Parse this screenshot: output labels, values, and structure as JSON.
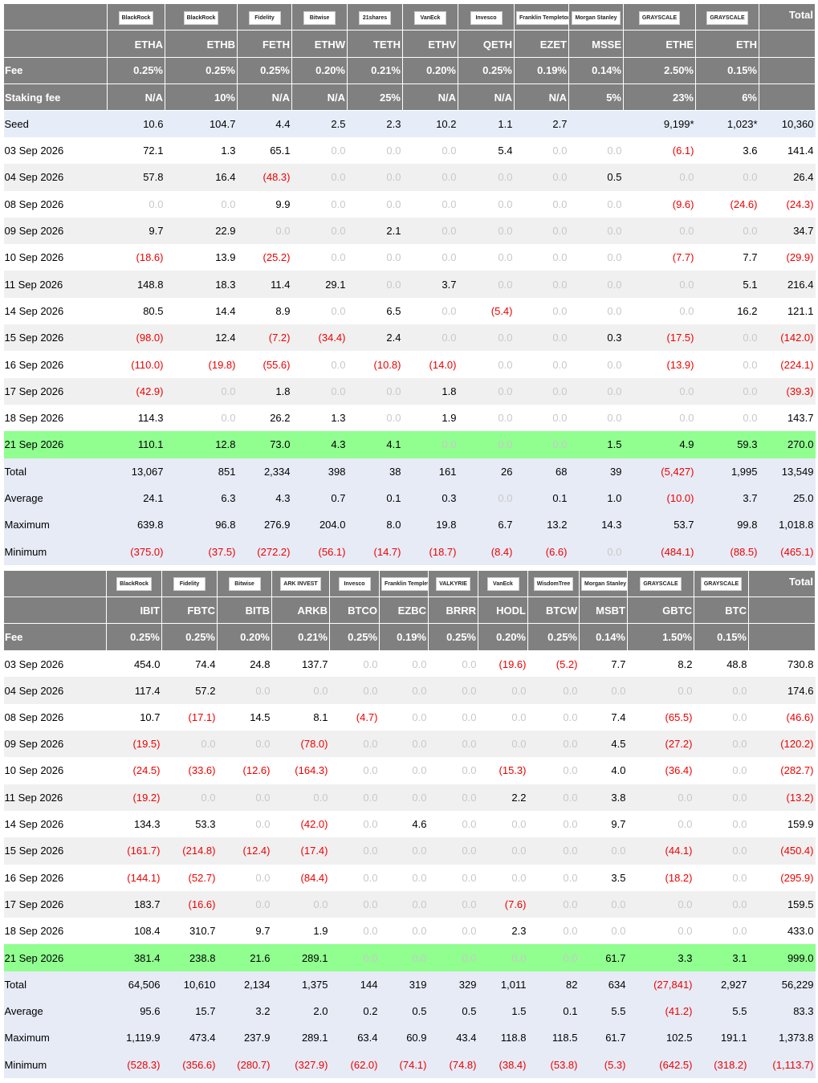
{
  "tables": [
    {
      "issuers": [
        "BlackRock",
        "BlackRock",
        "Fidelity",
        "Bitwise",
        "21shares",
        "VanEck",
        "Invesco",
        "Franklin Templeton",
        "Morgan Stanley",
        "GRAYSCALE",
        "GRAYSCALE"
      ],
      "total_header": "Total",
      "tickers": [
        "ETHA",
        "ETHB",
        "FETH",
        "ETHW",
        "TETH",
        "ETHV",
        "QETH",
        "EZET",
        "MSSE",
        "ETHE",
        "ETH"
      ],
      "fee": {
        "label": "Fee",
        "values": [
          "0.25%",
          "0.25%",
          "0.25%",
          "0.20%",
          "0.21%",
          "0.20%",
          "0.25%",
          "0.19%",
          "0.14%",
          "2.50%",
          "0.15%"
        ]
      },
      "staking_fee": {
        "label": "Staking fee",
        "values": [
          "N/A",
          "10%",
          "N/A",
          "N/A",
          "25%",
          "N/A",
          "N/A",
          "N/A",
          "5%",
          "23%",
          "6%"
        ]
      },
      "seed": {
        "label": "Seed",
        "cells": [
          "10.6",
          "104.7",
          "4.4",
          "2.5",
          "2.3",
          "10.2",
          "1.1",
          "2.7",
          null,
          "9,199*",
          "1,023*",
          "10,360"
        ]
      },
      "rows": [
        {
          "label": "03 Sep 2026",
          "cells": [
            "72.1",
            "1.3",
            "65.1",
            "0.0",
            "0.0",
            "0.0",
            "5.4",
            "0.0",
            "0.0",
            "(6.1)",
            "3.6",
            "141.4"
          ]
        },
        {
          "label": "04 Sep 2026",
          "cells": [
            "57.8",
            "16.4",
            "(48.3)",
            "0.0",
            "0.0",
            "0.0",
            "0.0",
            "0.0",
            "0.5",
            "0.0",
            "0.0",
            "26.4"
          ]
        },
        {
          "label": "08 Sep 2026",
          "cells": [
            "0.0",
            "0.0",
            "9.9",
            "0.0",
            "0.0",
            "0.0",
            "0.0",
            "0.0",
            "0.0",
            "(9.6)",
            "(24.6)",
            "(24.3)"
          ]
        },
        {
          "label": "09 Sep 2026",
          "cells": [
            "9.7",
            "22.9",
            "0.0",
            "0.0",
            "2.1",
            "0.0",
            "0.0",
            "0.0",
            "0.0",
            "0.0",
            "0.0",
            "34.7"
          ]
        },
        {
          "label": "10 Sep 2026",
          "cells": [
            "(18.6)",
            "13.9",
            "(25.2)",
            "0.0",
            "0.0",
            "0.0",
            "0.0",
            "0.0",
            "0.0",
            "(7.7)",
            "7.7",
            "(29.9)"
          ]
        },
        {
          "label": "11 Sep 2026",
          "cells": [
            "148.8",
            "18.3",
            "11.4",
            "29.1",
            "0.0",
            "3.7",
            "0.0",
            "0.0",
            "0.0",
            "0.0",
            "5.1",
            "216.4"
          ]
        },
        {
          "label": "14 Sep 2026",
          "cells": [
            "80.5",
            "14.4",
            "8.9",
            "0.0",
            "6.5",
            "0.0",
            "(5.4)",
            "0.0",
            "0.0",
            "0.0",
            "16.2",
            "121.1"
          ]
        },
        {
          "label": "15 Sep 2026",
          "cells": [
            "(98.0)",
            "12.4",
            "(7.2)",
            "(34.4)",
            "2.4",
            "0.0",
            "0.0",
            "0.0",
            "0.3",
            "(17.5)",
            "0.0",
            "(142.0)"
          ]
        },
        {
          "label": "16 Sep 2026",
          "cells": [
            "(110.0)",
            "(19.8)",
            "(55.6)",
            "0.0",
            "(10.8)",
            "(14.0)",
            "0.0",
            "0.0",
            "0.0",
            "(13.9)",
            "0.0",
            "(224.1)"
          ]
        },
        {
          "label": "17 Sep 2026",
          "cells": [
            "(42.9)",
            "0.0",
            "1.8",
            "0.0",
            "0.0",
            "1.8",
            "0.0",
            "0.0",
            "0.0",
            "0.0",
            "0.0",
            "(39.3)"
          ]
        },
        {
          "label": "18 Sep 2026",
          "cells": [
            "114.3",
            "0.0",
            "26.2",
            "1.3",
            "0.0",
            "1.9",
            "0.0",
            "0.0",
            "0.0",
            "0.0",
            "0.0",
            "143.7"
          ]
        },
        {
          "label": "21 Sep 2026",
          "cells": [
            "110.1",
            "12.8",
            "73.0",
            "4.3",
            "4.1",
            "0.0",
            "0.0",
            "0.0",
            "1.5",
            "4.9",
            "59.3",
            "270.0"
          ]
        }
      ],
      "summary": [
        {
          "label": "Total",
          "cells": [
            "13,067",
            "851",
            "2,334",
            "398",
            "38",
            "161",
            "26",
            "68",
            "39",
            "(5,427)",
            "1,995",
            "13,549"
          ]
        },
        {
          "label": "Average",
          "cells": [
            "24.1",
            "6.3",
            "4.3",
            "0.7",
            "0.1",
            "0.3",
            "0.0",
            "0.1",
            "1.0",
            "(10.0)",
            "3.7",
            "25.0"
          ]
        },
        {
          "label": "Maximum",
          "cells": [
            "639.8",
            "96.8",
            "276.9",
            "204.0",
            "8.0",
            "19.8",
            "6.7",
            "13.2",
            "14.3",
            "53.7",
            "99.8",
            "1,018.8"
          ]
        },
        {
          "label": "Minimum",
          "cells": [
            "(375.0)",
            "(37.5)",
            "(272.2)",
            "(56.1)",
            "(14.7)",
            "(18.7)",
            "(8.4)",
            "(6.6)",
            "0.0",
            "(484.1)",
            "(88.5)",
            "(465.1)"
          ]
        }
      ]
    },
    {
      "issuers": [
        "BlackRock",
        "Fidelity",
        "Bitwise",
        "ARK INVEST",
        "Invesco",
        "Franklin Templeton",
        "VALKYRIE",
        "VanEck",
        "WisdomTree",
        "Morgan Stanley",
        "GRAYSCALE",
        "GRAYSCALE"
      ],
      "total_header": "Total",
      "tickers": [
        "IBIT",
        "FBTC",
        "BITB",
        "ARKB",
        "BTCO",
        "EZBC",
        "BRRR",
        "HODL",
        "BTCW",
        "MSBT",
        "GBTC",
        "BTC"
      ],
      "fee": {
        "label": "Fee",
        "values": [
          "0.25%",
          "0.25%",
          "0.20%",
          "0.21%",
          "0.25%",
          "0.19%",
          "0.25%",
          "0.20%",
          "0.25%",
          "0.14%",
          "1.50%",
          "0.15%"
        ]
      },
      "rows": [
        {
          "label": "03 Sep 2026",
          "cells": [
            "454.0",
            "74.4",
            "24.8",
            "137.7",
            "0.0",
            "0.0",
            "0.0",
            "(19.6)",
            "(5.2)",
            "7.7",
            "8.2",
            "48.8",
            "730.8"
          ]
        },
        {
          "label": "04 Sep 2026",
          "cells": [
            "117.4",
            "57.2",
            "0.0",
            "0.0",
            "0.0",
            "0.0",
            "0.0",
            "0.0",
            "0.0",
            "0.0",
            "0.0",
            "0.0",
            "174.6"
          ]
        },
        {
          "label": "08 Sep 2026",
          "cells": [
            "10.7",
            "(17.1)",
            "14.5",
            "8.1",
            "(4.7)",
            "0.0",
            "0.0",
            "0.0",
            "0.0",
            "7.4",
            "(65.5)",
            "0.0",
            "(46.6)"
          ]
        },
        {
          "label": "09 Sep 2026",
          "cells": [
            "(19.5)",
            "0.0",
            "0.0",
            "(78.0)",
            "0.0",
            "0.0",
            "0.0",
            "0.0",
            "0.0",
            "4.5",
            "(27.2)",
            "0.0",
            "(120.2)"
          ]
        },
        {
          "label": "10 Sep 2026",
          "cells": [
            "(24.5)",
            "(33.6)",
            "(12.6)",
            "(164.3)",
            "0.0",
            "0.0",
            "0.0",
            "(15.3)",
            "0.0",
            "4.0",
            "(36.4)",
            "0.0",
            "(282.7)"
          ]
        },
        {
          "label": "11 Sep 2026",
          "cells": [
            "(19.2)",
            "0.0",
            "0.0",
            "0.0",
            "0.0",
            "0.0",
            "0.0",
            "2.2",
            "0.0",
            "3.8",
            "0.0",
            "0.0",
            "(13.2)"
          ]
        },
        {
          "label": "14 Sep 2026",
          "cells": [
            "134.3",
            "53.3",
            "0.0",
            "(42.0)",
            "0.0",
            "4.6",
            "0.0",
            "0.0",
            "0.0",
            "9.7",
            "0.0",
            "0.0",
            "159.9"
          ]
        },
        {
          "label": "15 Sep 2026",
          "cells": [
            "(161.7)",
            "(214.8)",
            "(12.4)",
            "(17.4)",
            "0.0",
            "0.0",
            "0.0",
            "0.0",
            "0.0",
            "0.0",
            "(44.1)",
            "0.0",
            "(450.4)"
          ]
        },
        {
          "label": "16 Sep 2026",
          "cells": [
            "(144.1)",
            "(52.7)",
            "0.0",
            "(84.4)",
            "0.0",
            "0.0",
            "0.0",
            "0.0",
            "0.0",
            "3.5",
            "(18.2)",
            "0.0",
            "(295.9)"
          ]
        },
        {
          "label": "17 Sep 2026",
          "cells": [
            "183.7",
            "(16.6)",
            "0.0",
            "0.0",
            "0.0",
            "0.0",
            "0.0",
            "(7.6)",
            "0.0",
            "0.0",
            "0.0",
            "0.0",
            "159.5"
          ]
        },
        {
          "label": "18 Sep 2026",
          "cells": [
            "108.4",
            "310.7",
            "9.7",
            "1.9",
            "0.0",
            "0.0",
            "0.0",
            "2.3",
            "0.0",
            "0.0",
            "0.0",
            "0.0",
            "433.0"
          ]
        },
        {
          "label": "21 Sep 2026",
          "cells": [
            "381.4",
            "238.8",
            "21.6",
            "289.1",
            "0.0",
            "0.0",
            "0.0",
            "0.0",
            "0.0",
            "61.7",
            "3.3",
            "3.1",
            "999.0"
          ]
        }
      ],
      "summary": [
        {
          "label": "Total",
          "cells": [
            "64,506",
            "10,610",
            "2,134",
            "1,375",
            "144",
            "319",
            "329",
            "1,011",
            "82",
            "634",
            "(27,841)",
            "2,927",
            "56,229"
          ]
        },
        {
          "label": "Average",
          "cells": [
            "95.6",
            "15.7",
            "3.2",
            "2.0",
            "0.2",
            "0.5",
            "0.5",
            "1.5",
            "0.1",
            "5.5",
            "(41.2)",
            "5.5",
            "83.3"
          ]
        },
        {
          "label": "Maximum",
          "cells": [
            "1,119.9",
            "473.4",
            "237.9",
            "289.1",
            "63.4",
            "60.9",
            "43.4",
            "118.8",
            "118.5",
            "61.7",
            "102.5",
            "191.1",
            "1,373.8"
          ]
        },
        {
          "label": "Minimum",
          "cells": [
            "(528.3)",
            "(356.6)",
            "(280.7)",
            "(327.9)",
            "(62.0)",
            "(74.1)",
            "(74.8)",
            "(38.4)",
            "(53.8)",
            "(5.3)",
            "(642.5)",
            "(318.2)",
            "(1,113.7)"
          ]
        }
      ]
    }
  ]
}
